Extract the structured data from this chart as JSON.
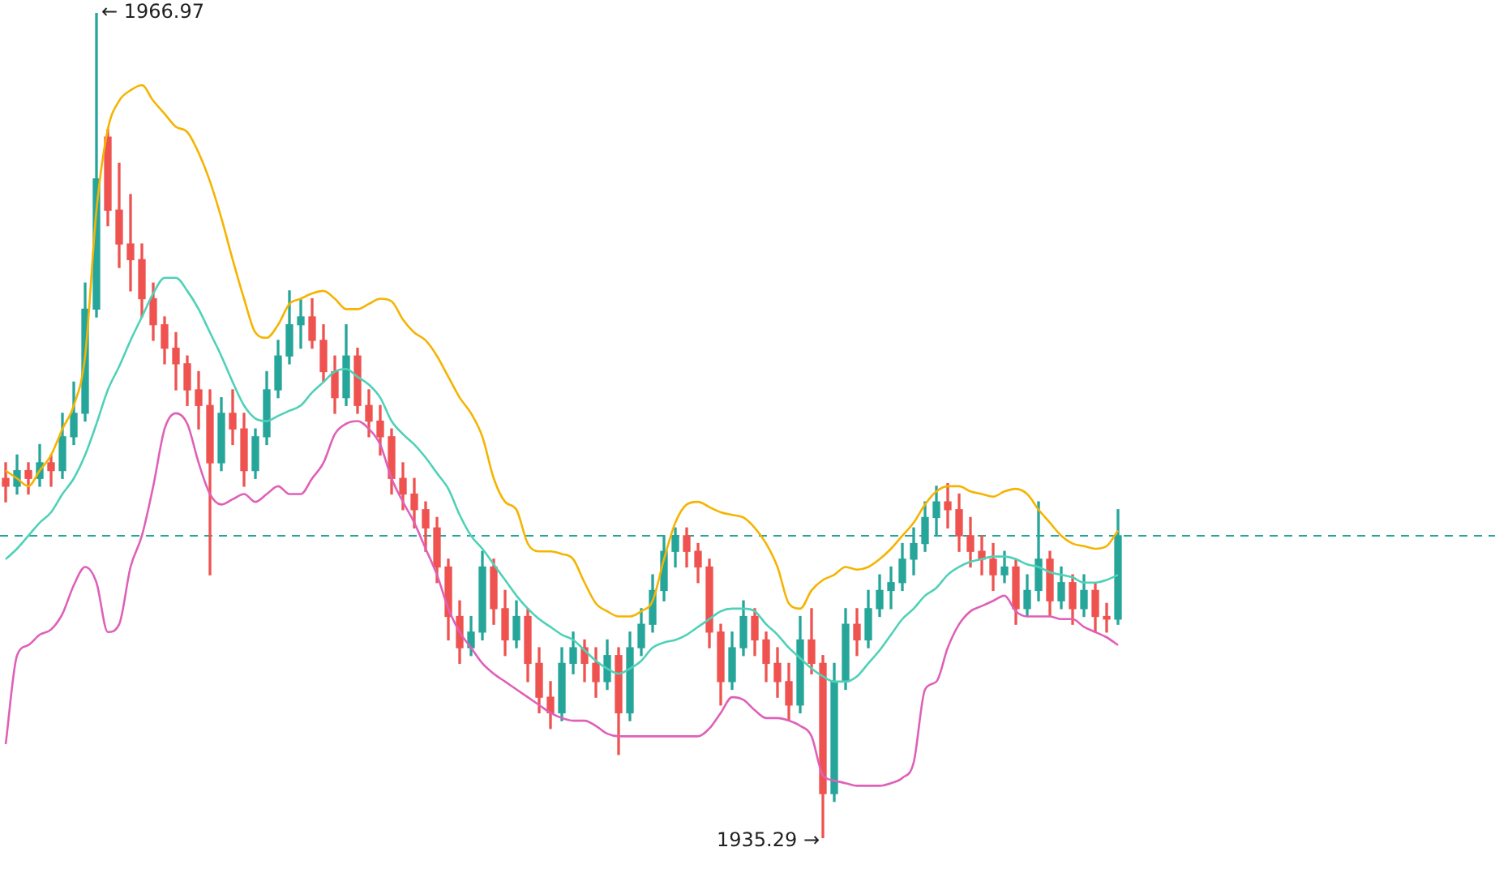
{
  "chart_data": {
    "type": "candlestick",
    "categories": [
      null,
      null,
      null,
      null,
      null,
      null,
      null,
      null,
      null,
      null,
      null,
      null,
      null,
      null,
      null,
      null,
      null,
      null,
      null,
      null,
      null,
      null,
      null,
      null,
      null,
      null,
      null,
      null,
      null,
      null,
      null,
      null,
      null,
      null,
      null,
      null,
      null,
      null,
      null,
      null,
      null,
      null,
      null,
      null,
      null,
      null,
      null,
      null,
      null,
      null,
      null,
      null,
      null,
      null,
      null,
      null,
      null,
      null,
      null,
      null,
      null,
      null,
      null,
      null,
      null,
      null,
      null,
      null,
      null,
      null,
      null,
      null,
      null,
      null,
      null,
      null,
      null,
      null,
      null,
      null,
      null,
      null,
      null,
      null,
      null,
      null,
      null,
      null,
      null,
      null,
      null,
      null,
      null,
      null,
      null,
      null,
      null,
      null,
      null
    ],
    "ohlc": [
      [
        1949.1,
        1949.7,
        1948.2,
        1948.8
      ],
      [
        1948.8,
        1950.0,
        1948.5,
        1949.4
      ],
      [
        1949.4,
        1949.7,
        1948.5,
        1949.1
      ],
      [
        1949.1,
        1950.4,
        1948.8,
        1949.7
      ],
      [
        1949.7,
        1950.0,
        1948.8,
        1949.4
      ],
      [
        1949.4,
        1951.6,
        1949.1,
        1950.7
      ],
      [
        1950.7,
        1952.8,
        1950.4,
        1951.6
      ],
      [
        1951.6,
        1956.6,
        1951.3,
        1955.6
      ],
      [
        1955.6,
        1966.97,
        1955.3,
        1960.6
      ],
      [
        1962.2,
        1962.5,
        1958.8,
        1959.4
      ],
      [
        1959.4,
        1961.2,
        1957.2,
        1958.1
      ],
      [
        1958.1,
        1960.0,
        1956.3,
        1957.5
      ],
      [
        1957.5,
        1958.1,
        1955.3,
        1956.0
      ],
      [
        1956.0,
        1956.6,
        1954.4,
        1955.0
      ],
      [
        1955.0,
        1955.3,
        1953.5,
        1954.1
      ],
      [
        1954.1,
        1954.7,
        1952.5,
        1953.5
      ],
      [
        1953.5,
        1953.8,
        1951.9,
        1952.5
      ],
      [
        1952.5,
        1953.2,
        1951.0,
        1951.9
      ],
      [
        1951.9,
        1952.5,
        1945.4,
        1949.7
      ],
      [
        1949.7,
        1952.2,
        1949.4,
        1951.6
      ],
      [
        1951.6,
        1952.5,
        1950.4,
        1951.0
      ],
      [
        1951.0,
        1951.6,
        1948.8,
        1949.4
      ],
      [
        1949.4,
        1951.0,
        1949.1,
        1950.7
      ],
      [
        1950.7,
        1953.2,
        1950.4,
        1952.5
      ],
      [
        1952.5,
        1954.4,
        1952.2,
        1953.8
      ],
      [
        1953.8,
        1956.3,
        1953.5,
        1955.0
      ],
      [
        1955.0,
        1956.0,
        1954.1,
        1955.3
      ],
      [
        1955.3,
        1956.0,
        1954.1,
        1954.4
      ],
      [
        1954.4,
        1955.0,
        1952.8,
        1953.2
      ],
      [
        1953.2,
        1953.8,
        1951.6,
        1952.2
      ],
      [
        1952.2,
        1955.0,
        1951.9,
        1953.8
      ],
      [
        1953.8,
        1954.1,
        1951.6,
        1951.9
      ],
      [
        1951.9,
        1952.5,
        1950.7,
        1951.3
      ],
      [
        1951.3,
        1951.9,
        1950.0,
        1950.7
      ],
      [
        1950.7,
        1951.0,
        1948.5,
        1949.1
      ],
      [
        1949.1,
        1949.7,
        1947.9,
        1948.5
      ],
      [
        1948.5,
        1949.1,
        1947.2,
        1947.9
      ],
      [
        1947.9,
        1948.2,
        1946.3,
        1947.2
      ],
      [
        1947.2,
        1947.6,
        1945.1,
        1945.7
      ],
      [
        1945.7,
        1946.0,
        1942.9,
        1943.8
      ],
      [
        1943.8,
        1944.4,
        1942.0,
        1942.6
      ],
      [
        1942.6,
        1943.8,
        1942.3,
        1943.2
      ],
      [
        1943.2,
        1946.3,
        1942.9,
        1945.7
      ],
      [
        1945.7,
        1946.0,
        1943.5,
        1944.1
      ],
      [
        1944.1,
        1944.8,
        1942.3,
        1942.9
      ],
      [
        1942.9,
        1944.4,
        1942.6,
        1943.8
      ],
      [
        1943.8,
        1944.1,
        1941.3,
        1942.0
      ],
      [
        1942.0,
        1942.6,
        1940.1,
        1940.7
      ],
      [
        1940.7,
        1941.3,
        1939.5,
        1940.1
      ],
      [
        1940.1,
        1942.6,
        1939.8,
        1942.0
      ],
      [
        1942.0,
        1943.2,
        1941.6,
        1942.6
      ],
      [
        1942.6,
        1942.9,
        1941.3,
        1942.0
      ],
      [
        1942.0,
        1942.6,
        1940.7,
        1941.3
      ],
      [
        1941.3,
        1942.9,
        1941.0,
        1942.3
      ],
      [
        1942.3,
        1942.6,
        1938.5,
        1940.1
      ],
      [
        1940.1,
        1943.2,
        1939.8,
        1942.6
      ],
      [
        1942.6,
        1944.1,
        1942.3,
        1943.5
      ],
      [
        1943.5,
        1945.4,
        1943.2,
        1944.8
      ],
      [
        1944.8,
        1946.9,
        1944.4,
        1946.3
      ],
      [
        1946.3,
        1947.2,
        1945.7,
        1946.9
      ],
      [
        1946.9,
        1947.2,
        1945.7,
        1946.3
      ],
      [
        1946.3,
        1946.6,
        1945.1,
        1945.7
      ],
      [
        1945.7,
        1946.0,
        1942.6,
        1943.2
      ],
      [
        1943.2,
        1943.5,
        1940.4,
        1941.3
      ],
      [
        1941.3,
        1943.2,
        1941.0,
        1942.6
      ],
      [
        1942.6,
        1944.4,
        1942.3,
        1943.8
      ],
      [
        1943.8,
        1944.1,
        1942.3,
        1942.9
      ],
      [
        1942.9,
        1943.2,
        1941.3,
        1942.0
      ],
      [
        1942.0,
        1942.6,
        1940.7,
        1941.3
      ],
      [
        1941.3,
        1942.0,
        1939.8,
        1940.4
      ],
      [
        1940.4,
        1943.8,
        1940.1,
        1942.9
      ],
      [
        1942.9,
        1944.1,
        1941.6,
        1942.0
      ],
      [
        1942.0,
        1942.3,
        1935.29,
        1937.0
      ],
      [
        1937.0,
        1942.0,
        1936.7,
        1941.3
      ],
      [
        1941.3,
        1944.1,
        1941.0,
        1943.5
      ],
      [
        1943.5,
        1944.1,
        1942.3,
        1942.9
      ],
      [
        1942.9,
        1944.8,
        1942.6,
        1944.1
      ],
      [
        1944.1,
        1945.4,
        1943.8,
        1944.8
      ],
      [
        1944.8,
        1945.7,
        1944.1,
        1945.1
      ],
      [
        1945.1,
        1946.6,
        1944.8,
        1946.0
      ],
      [
        1946.0,
        1947.2,
        1945.4,
        1946.6
      ],
      [
        1946.6,
        1948.2,
        1946.3,
        1947.6
      ],
      [
        1947.6,
        1948.8,
        1946.9,
        1948.2
      ],
      [
        1948.2,
        1948.9,
        1947.2,
        1947.9
      ],
      [
        1947.9,
        1948.5,
        1946.3,
        1946.9
      ],
      [
        1946.9,
        1947.6,
        1945.7,
        1946.3
      ],
      [
        1946.3,
        1946.9,
        1945.4,
        1946.0
      ],
      [
        1946.0,
        1946.6,
        1944.8,
        1945.4
      ],
      [
        1945.4,
        1946.3,
        1945.1,
        1945.7
      ],
      [
        1945.7,
        1946.0,
        1943.5,
        1944.1
      ],
      [
        1944.1,
        1945.4,
        1943.8,
        1944.8
      ],
      [
        1944.8,
        1948.2,
        1944.4,
        1946.0
      ],
      [
        1946.0,
        1946.3,
        1943.8,
        1944.4
      ],
      [
        1944.4,
        1945.7,
        1944.1,
        1945.1
      ],
      [
        1945.1,
        1945.4,
        1943.5,
        1944.1
      ],
      [
        1944.1,
        1945.4,
        1943.8,
        1944.8
      ],
      [
        1944.8,
        1945.1,
        1943.2,
        1943.8
      ],
      [
        1943.8,
        1944.3,
        1943.2,
        1943.7
      ],
      [
        1943.7,
        1947.9,
        1943.5,
        1946.9
      ]
    ],
    "colors": [
      "#ef5350",
      "#26a69a",
      "#ef5350",
      "#26a69a",
      "#ef5350",
      "#26a69a",
      "#26a69a",
      "#26a69a",
      "#26a69a",
      "#ef5350",
      "#ef5350",
      "#ef5350",
      "#ef5350",
      "#ef5350",
      "#ef5350",
      "#ef5350",
      "#ef5350",
      "#ef5350",
      "#ef5350",
      "#26a69a",
      "#ef5350",
      "#ef5350",
      "#26a69a",
      "#26a69a",
      "#26a69a",
      "#26a69a",
      "#26a69a",
      "#ef5350",
      "#ef5350",
      "#ef5350",
      "#26a69a",
      "#ef5350",
      "#ef5350",
      "#ef5350",
      "#ef5350",
      "#ef5350",
      "#ef5350",
      "#ef5350",
      "#ef5350",
      "#ef5350",
      "#ef5350",
      "#26a69a",
      "#26a69a",
      "#ef5350",
      "#ef5350",
      "#26a69a",
      "#ef5350",
      "#ef5350",
      "#ef5350",
      "#26a69a",
      "#26a69a",
      "#ef5350",
      "#ef5350",
      "#26a69a",
      "#ef5350",
      "#26a69a",
      "#26a69a",
      "#26a69a",
      "#26a69a",
      "#26a69a",
      "#ef5350",
      "#ef5350",
      "#ef5350",
      "#ef5350",
      "#26a69a",
      "#26a69a",
      "#ef5350",
      "#ef5350",
      "#ef5350",
      "#ef5350",
      "#26a69a",
      "#ef5350",
      "#ef5350",
      "#26a69a",
      "#26a69a",
      "#ef5350",
      "#26a69a",
      "#26a69a",
      "#26a69a",
      "#26a69a",
      "#26a69a",
      "#26a69a",
      "#26a69a",
      "#ef5350",
      "#ef5350",
      "#ef5350",
      "#ef5350",
      "#ef5350",
      "#26a69a",
      "#ef5350",
      "#26a69a",
      "#26a69a",
      "#ef5350",
      "#26a69a",
      "#ef5350",
      "#26a69a",
      "#ef5350",
      "#ef5350",
      "#26a69a"
    ],
    "series": [
      {
        "type": "line",
        "color": "#f5b400",
        "values": [
          1949.4,
          1949.1,
          1948.8,
          1949.4,
          1950.0,
          1951.0,
          1951.9,
          1953.8,
          1959.4,
          1962.5,
          1963.6,
          1964.0,
          1964.2,
          1963.6,
          1963.1,
          1962.6,
          1962.4,
          1961.6,
          1960.5,
          1959.1,
          1957.5,
          1956.0,
          1954.7,
          1954.5,
          1955.0,
          1955.8,
          1956.0,
          1956.2,
          1956.3,
          1956.0,
          1955.6,
          1955.6,
          1955.8,
          1956.0,
          1955.9,
          1955.2,
          1954.7,
          1954.4,
          1953.8,
          1953.0,
          1952.2,
          1951.6,
          1950.7,
          1949.1,
          1948.2,
          1947.9,
          1946.6,
          1946.3,
          1946.3,
          1946.2,
          1946.0,
          1945.1,
          1944.3,
          1944.0,
          1943.8,
          1943.8,
          1944.0,
          1944.4,
          1946.0,
          1947.4,
          1948.1,
          1948.2,
          1948.0,
          1947.8,
          1947.7,
          1947.6,
          1947.2,
          1946.6,
          1945.7,
          1944.3,
          1944.1,
          1944.8,
          1945.2,
          1945.4,
          1945.7,
          1945.6,
          1945.7,
          1946.0,
          1946.4,
          1946.9,
          1947.4,
          1948.1,
          1948.6,
          1948.8,
          1948.8,
          1948.6,
          1948.5,
          1948.4,
          1948.6,
          1948.7,
          1948.5,
          1947.9,
          1947.4,
          1946.9,
          1946.6,
          1946.5,
          1946.4,
          1946.5,
          1947.1
        ]
      },
      {
        "type": "line",
        "color": "#4fd1b8",
        "values": [
          1946.0,
          1946.4,
          1946.9,
          1947.4,
          1947.8,
          1948.5,
          1949.1,
          1950.0,
          1951.2,
          1952.5,
          1953.4,
          1954.4,
          1955.3,
          1956.2,
          1956.8,
          1956.8,
          1956.3,
          1955.6,
          1954.7,
          1953.8,
          1952.8,
          1951.9,
          1951.4,
          1951.3,
          1951.5,
          1951.7,
          1951.9,
          1952.4,
          1952.8,
          1953.2,
          1953.3,
          1953.0,
          1952.7,
          1952.2,
          1951.3,
          1950.8,
          1950.4,
          1949.9,
          1949.3,
          1948.7,
          1947.7,
          1946.9,
          1946.4,
          1945.8,
          1945.2,
          1944.6,
          1944.1,
          1943.7,
          1943.4,
          1943.1,
          1942.9,
          1942.5,
          1942.1,
          1941.8,
          1941.6,
          1941.8,
          1942.1,
          1942.6,
          1942.8,
          1942.9,
          1943.1,
          1943.4,
          1943.7,
          1944.0,
          1944.1,
          1944.1,
          1944.0,
          1943.5,
          1943.1,
          1942.6,
          1942.2,
          1941.8,
          1941.5,
          1941.3,
          1941.3,
          1941.5,
          1942.0,
          1942.5,
          1943.1,
          1943.7,
          1944.1,
          1944.6,
          1944.9,
          1945.4,
          1945.7,
          1945.9,
          1946.0,
          1946.1,
          1946.1,
          1946.0,
          1945.8,
          1945.7,
          1945.5,
          1945.4,
          1945.3,
          1945.1,
          1945.1,
          1945.2,
          1945.4
        ]
      },
      {
        "type": "line",
        "color": "#e060b8",
        "values": [
          1938.9,
          1942.3,
          1942.7,
          1943.1,
          1943.3,
          1943.9,
          1945.0,
          1945.7,
          1945.1,
          1943.2,
          1943.5,
          1945.7,
          1946.9,
          1948.8,
          1951.0,
          1951.6,
          1951.2,
          1949.7,
          1948.5,
          1948.1,
          1948.3,
          1948.5,
          1948.2,
          1948.5,
          1948.8,
          1948.5,
          1948.5,
          1949.1,
          1949.7,
          1950.8,
          1951.2,
          1951.3,
          1951.0,
          1950.4,
          1949.1,
          1948.2,
          1947.4,
          1946.4,
          1945.4,
          1944.1,
          1943.2,
          1942.6,
          1942.0,
          1941.6,
          1941.3,
          1941.0,
          1940.7,
          1940.4,
          1940.1,
          1939.9,
          1939.8,
          1939.8,
          1939.6,
          1939.3,
          1939.2,
          1939.2,
          1939.2,
          1939.2,
          1939.2,
          1939.2,
          1939.2,
          1939.2,
          1939.5,
          1940.1,
          1940.7,
          1940.6,
          1940.2,
          1939.9,
          1939.9,
          1939.8,
          1939.6,
          1939.2,
          1937.7,
          1937.5,
          1937.4,
          1937.3,
          1937.3,
          1937.3,
          1937.4,
          1937.6,
          1938.2,
          1941.0,
          1941.3,
          1942.6,
          1943.5,
          1944.0,
          1944.2,
          1944.4,
          1944.6,
          1944.0,
          1943.8,
          1943.8,
          1943.8,
          1943.7,
          1943.7,
          1943.4,
          1943.2,
          1943.0,
          1942.7
        ]
      }
    ],
    "ref_lines": [
      {
        "axis": "y",
        "value": 1946.9,
        "color": "#26a69a",
        "line_style": "dashed"
      }
    ],
    "annotations": [
      "← 1966.97",
      "1935.29 →"
    ]
  }
}
